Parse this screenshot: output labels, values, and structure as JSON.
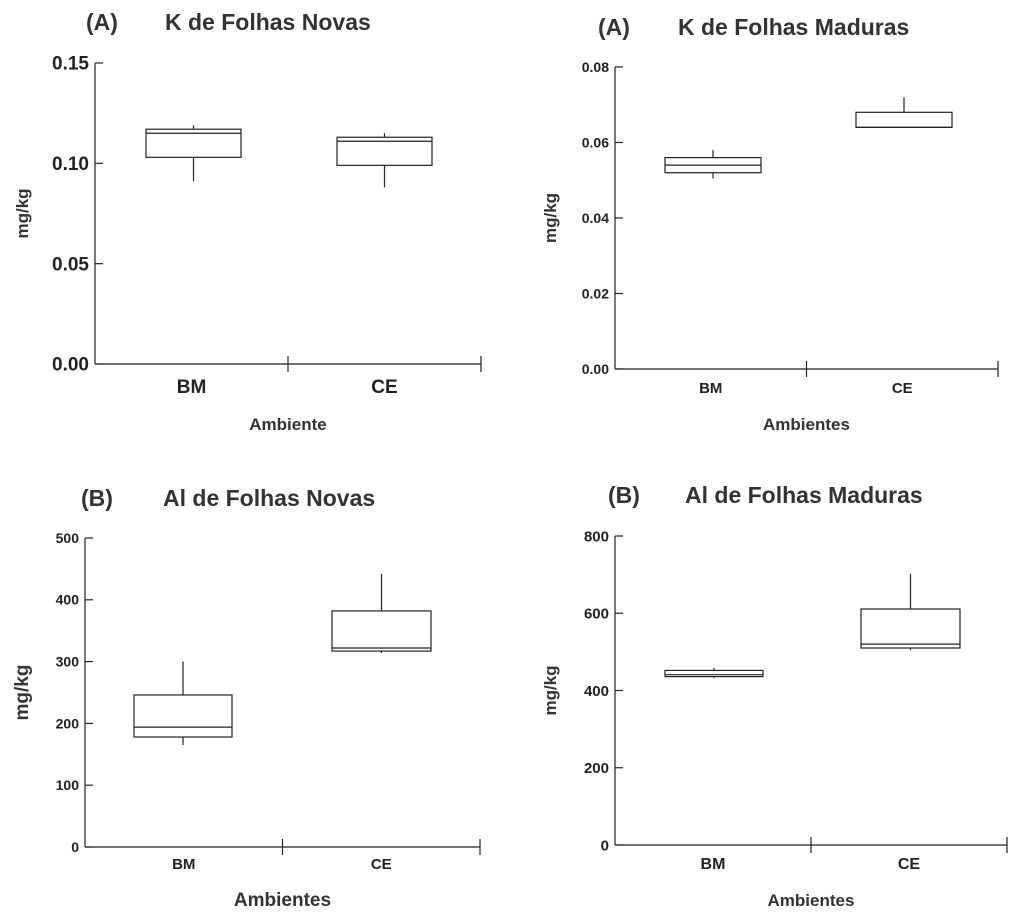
{
  "chart_data": [
    {
      "type": "box",
      "panel_label": "(A)",
      "title": "K de Folhas Novas",
      "xlabel": "Ambiente",
      "ylabel": "mg/kg",
      "ylim": [
        0,
        0.15
      ],
      "yticks": [
        "0.00",
        "0.05",
        "0.10",
        "0.15"
      ],
      "categories": [
        "BM",
        "CE"
      ],
      "boxes": [
        {
          "category": "BM",
          "min": 0.091,
          "q1": 0.103,
          "median": 0.115,
          "q3": 0.117,
          "max": 0.119
        },
        {
          "category": "CE",
          "min": 0.088,
          "q1": 0.099,
          "median": 0.111,
          "q3": 0.113,
          "max": 0.115
        }
      ]
    },
    {
      "type": "box",
      "panel_label": "(A)",
      "title": "K de Folhas Maduras",
      "xlabel": "Ambientes",
      "ylabel": "mg/kg",
      "ylim": [
        0,
        0.08
      ],
      "yticks": [
        "0.00",
        "0.02",
        "0.04",
        "0.06",
        "0.08"
      ],
      "categories": [
        "BM",
        "CE"
      ],
      "boxes": [
        {
          "category": "BM",
          "min": 0.0505,
          "q1": 0.052,
          "median": 0.054,
          "q3": 0.056,
          "max": 0.058
        },
        {
          "category": "CE",
          "min": 0.064,
          "q1": 0.064,
          "median": 0.064,
          "q3": 0.068,
          "max": 0.072
        }
      ]
    },
    {
      "type": "box",
      "panel_label": "(B)",
      "title": "Al de Folhas Novas",
      "xlabel": "Ambientes",
      "ylabel": "mg/kg",
      "ylim": [
        0,
        500
      ],
      "yticks": [
        "0",
        "100",
        "200",
        "300",
        "400",
        "500"
      ],
      "categories": [
        "BM",
        "CE"
      ],
      "boxes": [
        {
          "category": "BM",
          "min": 165,
          "q1": 178,
          "median": 194,
          "q3": 246,
          "max": 300
        },
        {
          "category": "CE",
          "min": 314,
          "q1": 317,
          "median": 322,
          "q3": 382,
          "max": 442
        }
      ]
    },
    {
      "type": "box",
      "panel_label": "(B)",
      "title": "Al de Folhas Maduras",
      "xlabel": "Ambientes",
      "ylabel": "mg/kg",
      "ylim": [
        0,
        800
      ],
      "yticks": [
        "0",
        "200",
        "400",
        "600",
        "800"
      ],
      "categories": [
        "BM",
        "CE"
      ],
      "boxes": [
        {
          "category": "BM",
          "min": 432,
          "q1": 436,
          "median": 441,
          "q3": 452,
          "max": 458
        },
        {
          "category": "CE",
          "min": 504,
          "q1": 510,
          "median": 520,
          "q3": 611,
          "max": 702
        }
      ]
    }
  ]
}
